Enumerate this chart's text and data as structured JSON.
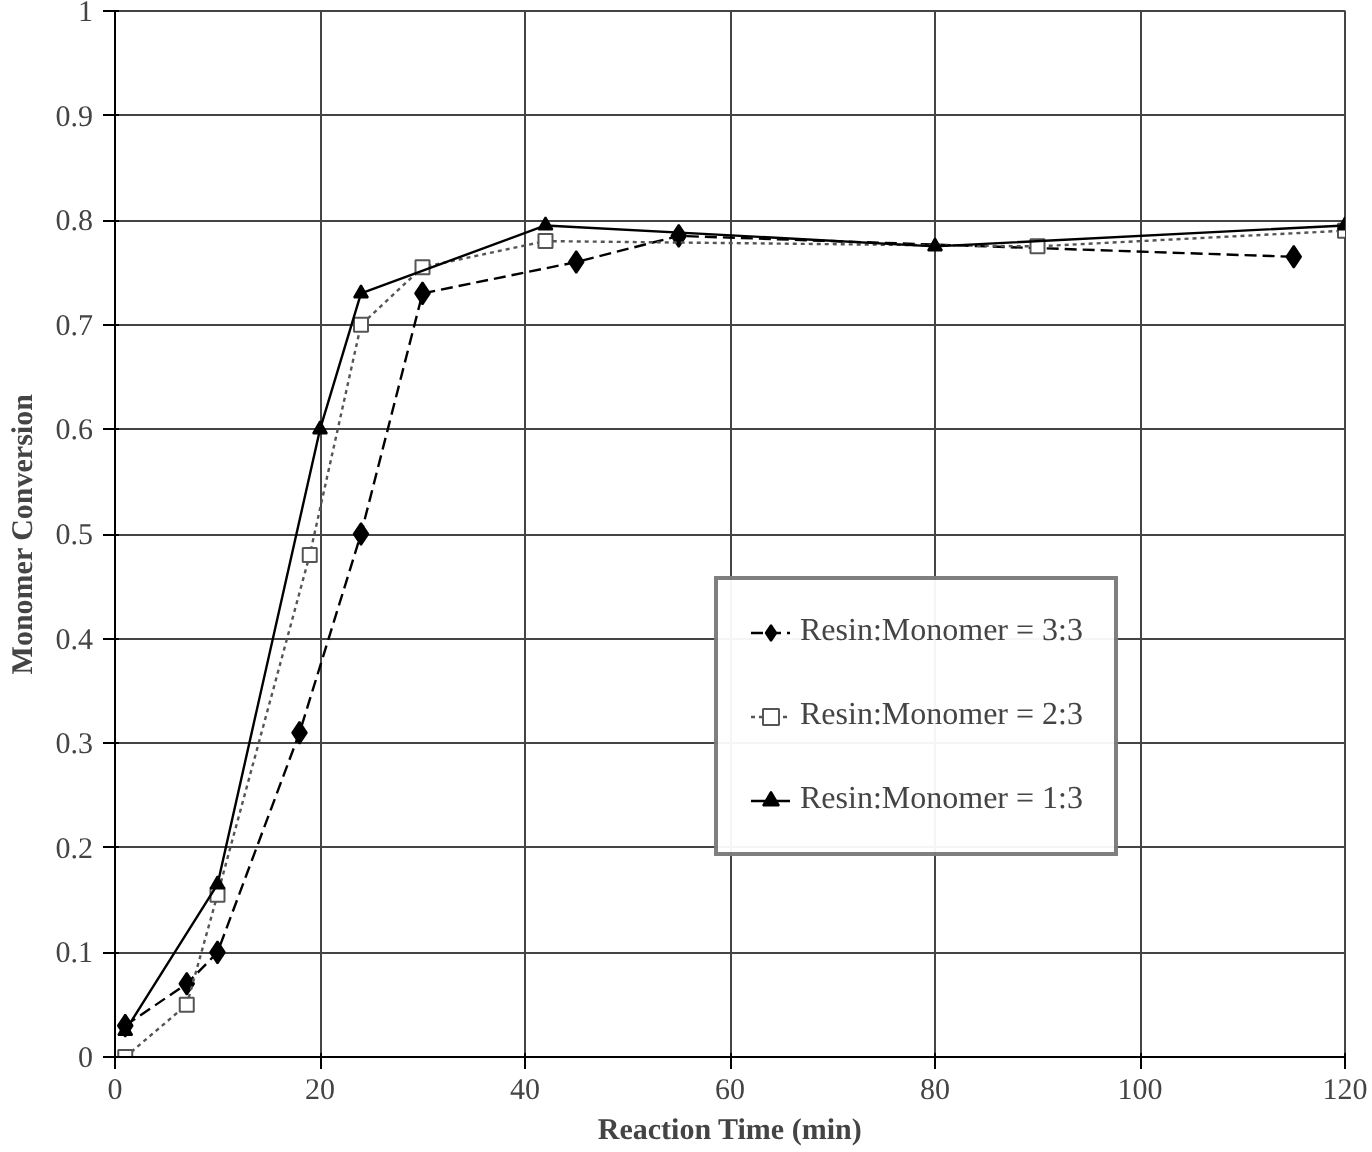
{
  "chart_data": {
    "type": "line",
    "xlabel": "Reaction Time (min)",
    "ylabel": "Monomer Conversion",
    "xlim": [
      0,
      120
    ],
    "xticks": [
      0,
      20,
      40,
      60,
      80,
      100,
      120
    ],
    "ylim": [
      0,
      1
    ],
    "yticks": [
      0,
      0.1,
      0.2,
      0.3,
      0.4,
      0.5,
      0.6,
      0.7,
      0.8,
      0.9,
      1
    ],
    "grid": true,
    "legend": "right",
    "series": [
      {
        "name": "Resin:Monomer = 3:3",
        "color": "#000000",
        "marker": "diamond",
        "line_style": "dashed",
        "x": [
          1,
          7,
          10,
          18,
          24,
          30,
          45,
          55,
          115
        ],
        "values": [
          0.03,
          0.07,
          0.1,
          0.31,
          0.5,
          0.73,
          0.76,
          0.785,
          0.765
        ]
      },
      {
        "name": "Resin:Monomer = 2:3",
        "color": "#555555",
        "marker": "square",
        "line_style": "dotted",
        "x": [
          1,
          7,
          10,
          19,
          24,
          30,
          42,
          90,
          120
        ],
        "values": [
          0.0,
          0.05,
          0.155,
          0.48,
          0.7,
          0.755,
          0.78,
          0.775,
          0.79
        ]
      },
      {
        "name": "Resin:Monomer = 1:3",
        "color": "#000000",
        "marker": "triangle",
        "line_style": "solid",
        "x": [
          1,
          10,
          20,
          24,
          42,
          80,
          120
        ],
        "values": [
          0.025,
          0.165,
          0.6,
          0.73,
          0.795,
          0.775,
          0.795
        ]
      }
    ]
  }
}
